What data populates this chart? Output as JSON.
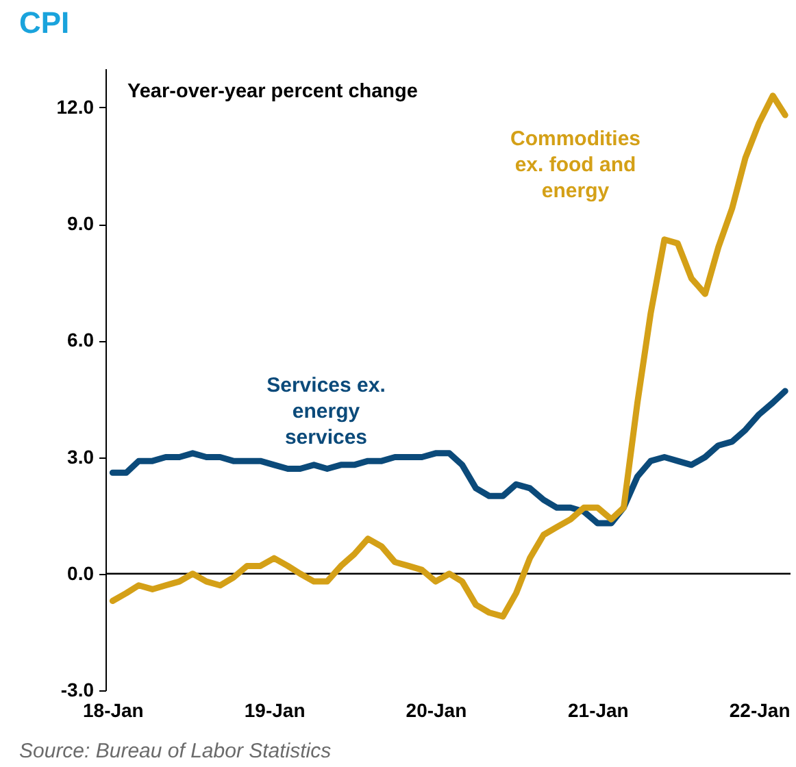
{
  "chart_data": {
    "type": "line",
    "title": "CPI",
    "subtitle": "Year-over-year percent change",
    "x": [
      "2018-01",
      "2018-02",
      "2018-03",
      "2018-04",
      "2018-05",
      "2018-06",
      "2018-07",
      "2018-08",
      "2018-09",
      "2018-10",
      "2018-11",
      "2018-12",
      "2019-01",
      "2019-02",
      "2019-03",
      "2019-04",
      "2019-05",
      "2019-06",
      "2019-07",
      "2019-08",
      "2019-09",
      "2019-10",
      "2019-11",
      "2019-12",
      "2020-01",
      "2020-02",
      "2020-03",
      "2020-04",
      "2020-05",
      "2020-06",
      "2020-07",
      "2020-08",
      "2020-09",
      "2020-10",
      "2020-11",
      "2020-12",
      "2021-01",
      "2021-02",
      "2021-03",
      "2021-04",
      "2021-05",
      "2021-06",
      "2021-07",
      "2021-08",
      "2021-09",
      "2021-10",
      "2021-11",
      "2021-12",
      "2022-01",
      "2022-02",
      "2022-03"
    ],
    "series": [
      {
        "name": "Services ex. energy services",
        "color": "#0b4a7a",
        "values": [
          2.6,
          2.6,
          2.9,
          2.9,
          3.0,
          3.0,
          3.1,
          3.0,
          3.0,
          2.9,
          2.9,
          2.9,
          2.8,
          2.7,
          2.7,
          2.8,
          2.7,
          2.8,
          2.8,
          2.9,
          2.9,
          3.0,
          3.0,
          3.0,
          3.1,
          3.1,
          2.8,
          2.2,
          2.0,
          2.0,
          2.3,
          2.2,
          1.9,
          1.7,
          1.7,
          1.6,
          1.3,
          1.3,
          1.7,
          2.5,
          2.9,
          3.0,
          2.9,
          2.8,
          3.0,
          3.3,
          3.4,
          3.7,
          4.1,
          4.4,
          4.7
        ]
      },
      {
        "name": "Commodities ex. food and energy",
        "color": "#d4a017",
        "values": [
          -0.7,
          -0.5,
          -0.3,
          -0.4,
          -0.3,
          -0.2,
          0.0,
          -0.2,
          -0.3,
          -0.1,
          0.2,
          0.2,
          0.4,
          0.2,
          0.0,
          -0.2,
          -0.2,
          0.2,
          0.5,
          0.9,
          0.7,
          0.3,
          0.2,
          0.1,
          -0.2,
          0.0,
          -0.2,
          -0.8,
          -1.0,
          -1.1,
          -0.5,
          0.4,
          1.0,
          1.2,
          1.4,
          1.7,
          1.7,
          1.4,
          1.7,
          4.4,
          6.7,
          8.6,
          8.5,
          7.6,
          7.2,
          8.4,
          9.4,
          10.7,
          11.6,
          12.3,
          11.8
        ]
      }
    ],
    "xlim": [
      "2017-12-16",
      "2022-03-13"
    ],
    "xticks": [
      {
        "value": "2018-01",
        "label": "18-Jan"
      },
      {
        "value": "2019-01",
        "label": "19-Jan"
      },
      {
        "value": "2020-01",
        "label": "20-Jan"
      },
      {
        "value": "2021-01",
        "label": "21-Jan"
      },
      {
        "value": "2022-01",
        "label": "22-Jan"
      }
    ],
    "ylim": [
      -3,
      13
    ],
    "yticks": [
      {
        "value": -3,
        "label": "-3.0"
      },
      {
        "value": 0,
        "label": "0.0"
      },
      {
        "value": 3,
        "label": "3.0"
      },
      {
        "value": 6,
        "label": "6.0"
      },
      {
        "value": 9,
        "label": "9.0"
      },
      {
        "value": 12,
        "label": "12.0"
      }
    ],
    "ref_lines": [
      {
        "axis": "y",
        "value": 0,
        "color": "#000000"
      }
    ],
    "annotations": [
      "Source: Bureau of Labor Statistics"
    ]
  }
}
